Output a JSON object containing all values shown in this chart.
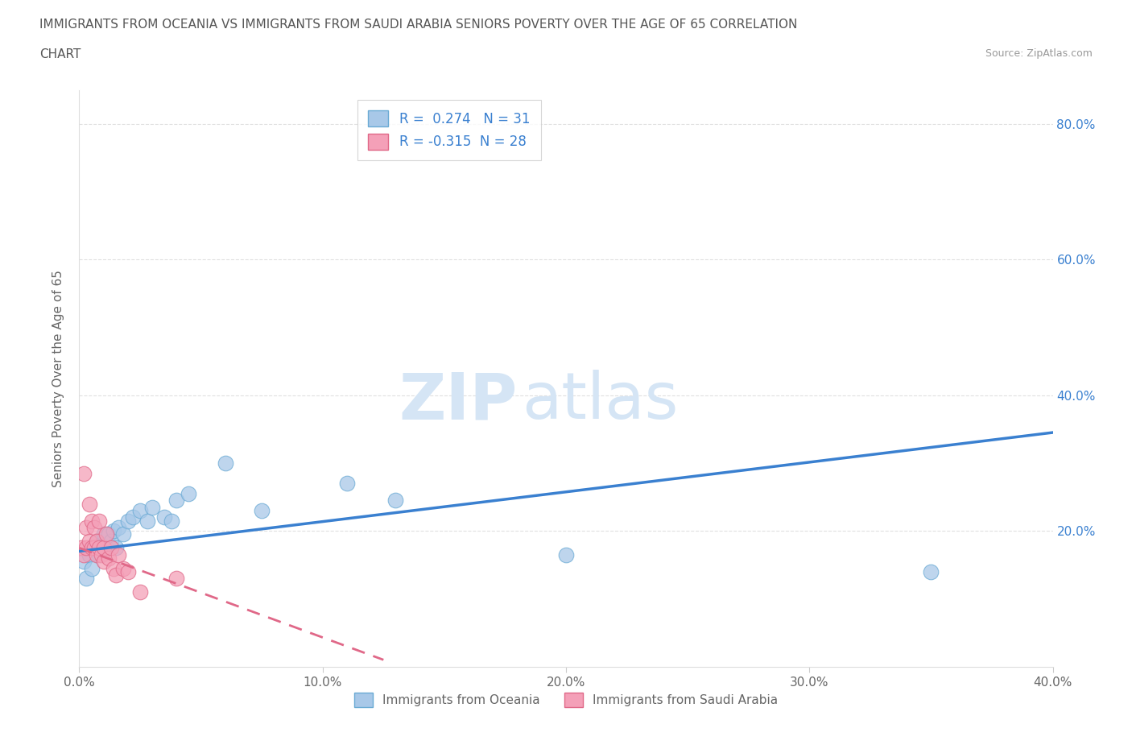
{
  "title_line1": "IMMIGRANTS FROM OCEANIA VS IMMIGRANTS FROM SAUDI ARABIA SENIORS POVERTY OVER THE AGE OF 65 CORRELATION",
  "title_line2": "CHART",
  "source": "Source: ZipAtlas.com",
  "ylabel": "Seniors Poverty Over the Age of 65",
  "xmin": 0.0,
  "xmax": 0.4,
  "ymin": 0.0,
  "ymax": 0.85,
  "xtick_labels": [
    "0.0%",
    "10.0%",
    "20.0%",
    "30.0%",
    "40.0%"
  ],
  "xtick_values": [
    0.0,
    0.1,
    0.2,
    0.3,
    0.4
  ],
  "ytick_values": [
    0.2,
    0.4,
    0.6,
    0.8
  ],
  "right_ytick_labels": [
    "20.0%",
    "40.0%",
    "60.0%",
    "80.0%"
  ],
  "right_ytick_values": [
    0.2,
    0.4,
    0.6,
    0.8
  ],
  "oceania_color": "#a8c8e8",
  "saudi_color": "#f4a0b8",
  "oceania_edge": "#6aaad4",
  "saudi_edge": "#e06888",
  "trend_oceania_color": "#3a80d0",
  "trend_saudi_color": "#e06888",
  "R_oceania": 0.274,
  "N_oceania": 31,
  "R_saudi": -0.315,
  "N_saudi": 28,
  "legend_label_oceania": "Immigrants from Oceania",
  "legend_label_saudi": "Immigrants from Saudi Arabia",
  "watermark_zip": "ZIP",
  "watermark_atlas": "atlas",
  "watermark_color": "#d5e5f5",
  "background_color": "#ffffff",
  "grid_color": "#cccccc",
  "title_color": "#555555",
  "axis_label_color": "#666666",
  "trend_oc_x0": 0.0,
  "trend_oc_y0": 0.17,
  "trend_oc_x1": 0.4,
  "trend_oc_y1": 0.345,
  "trend_sa_x0": 0.0,
  "trend_sa_y0": 0.175,
  "trend_sa_x1": 0.125,
  "trend_sa_y1": 0.01,
  "oceania_x": [
    0.002,
    0.003,
    0.004,
    0.005,
    0.006,
    0.007,
    0.008,
    0.009,
    0.01,
    0.011,
    0.012,
    0.013,
    0.014,
    0.015,
    0.016,
    0.018,
    0.02,
    0.022,
    0.025,
    0.028,
    0.03,
    0.035,
    0.038,
    0.04,
    0.045,
    0.06,
    0.075,
    0.11,
    0.13,
    0.2,
    0.35
  ],
  "oceania_y": [
    0.155,
    0.13,
    0.165,
    0.145,
    0.175,
    0.185,
    0.165,
    0.18,
    0.195,
    0.175,
    0.195,
    0.185,
    0.2,
    0.175,
    0.205,
    0.195,
    0.215,
    0.22,
    0.23,
    0.215,
    0.235,
    0.22,
    0.215,
    0.245,
    0.255,
    0.3,
    0.23,
    0.27,
    0.245,
    0.165,
    0.14
  ],
  "saudi_x": [
    0.001,
    0.002,
    0.002,
    0.003,
    0.003,
    0.004,
    0.004,
    0.005,
    0.005,
    0.006,
    0.006,
    0.007,
    0.007,
    0.008,
    0.008,
    0.009,
    0.01,
    0.01,
    0.011,
    0.012,
    0.013,
    0.014,
    0.015,
    0.016,
    0.018,
    0.02,
    0.025,
    0.04
  ],
  "saudi_y": [
    0.175,
    0.285,
    0.165,
    0.205,
    0.175,
    0.185,
    0.24,
    0.175,
    0.215,
    0.175,
    0.205,
    0.165,
    0.185,
    0.175,
    0.215,
    0.165,
    0.155,
    0.175,
    0.195,
    0.16,
    0.175,
    0.145,
    0.135,
    0.165,
    0.145,
    0.14,
    0.11,
    0.13
  ]
}
